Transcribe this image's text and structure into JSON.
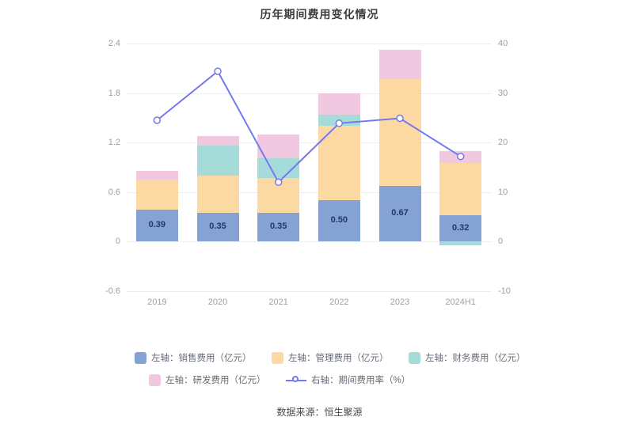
{
  "title": "历年期间费用变化情况",
  "footer": "数据来源：恒生聚源",
  "colors": {
    "sales": "#84a3d4",
    "management": "#fcd9a2",
    "finance": "#a5dbd8",
    "rd": "#f0c8e0",
    "rate_line": "#7478f0",
    "grid": "#ededf2",
    "axis_text": "#9aa0a8",
    "bar_label_text": "#1f3864"
  },
  "chart_data": {
    "type": "bar",
    "title": "历年期间费用变化情况",
    "categories": [
      "2019",
      "2020",
      "2021",
      "2022",
      "2023",
      "2024H1"
    ],
    "series": [
      {
        "name": "左轴：销售费用（亿元）",
        "axis": "left",
        "color": "#84a3d4",
        "values": [
          0.39,
          0.35,
          0.35,
          0.5,
          0.67,
          0.32
        ]
      },
      {
        "name": "左轴：管理费用（亿元）",
        "axis": "left",
        "color": "#fcd9a2",
        "values": [
          0.36,
          0.45,
          0.42,
          0.9,
          1.3,
          0.63
        ]
      },
      {
        "name": "左轴：财务费用（亿元）",
        "axis": "left",
        "color": "#a5dbd8",
        "values": [
          0.0,
          0.36,
          0.24,
          0.14,
          0.0,
          -0.04
        ]
      },
      {
        "name": "左轴：研发费用（亿元）",
        "axis": "left",
        "color": "#f0c8e0",
        "values": [
          0.11,
          0.12,
          0.29,
          0.26,
          0.35,
          0.15
        ]
      }
    ],
    "line_series": {
      "name": "右轴：期间费用率（%）",
      "axis": "right",
      "color": "#7478f0",
      "values": [
        24.5,
        34.4,
        12.0,
        23.9,
        24.9,
        17.2
      ]
    },
    "bar_labels": [
      "0.39",
      "0.35",
      "0.35",
      "0.50",
      "0.67",
      "0.32"
    ],
    "left_axis": {
      "min": -0.6,
      "max": 2.4,
      "ticks": [
        "2.4",
        "1.8",
        "1.2",
        "0.6",
        "0",
        "-0.6"
      ],
      "tick_values": [
        2.4,
        1.8,
        1.2,
        0.6,
        0,
        -0.6
      ]
    },
    "right_axis": {
      "min": -10,
      "max": 40,
      "ticks": [
        "40",
        "30",
        "20",
        "10",
        "0",
        "-10"
      ],
      "tick_values": [
        40,
        30,
        20,
        10,
        0,
        -10
      ]
    },
    "grid": true,
    "legend_position": "bottom"
  },
  "legend": {
    "items": [
      {
        "label": "左轴：销售费用（亿元）",
        "color": "#84a3d4",
        "type": "box"
      },
      {
        "label": "左轴：管理费用（亿元）",
        "color": "#fcd9a2",
        "type": "box"
      },
      {
        "label": "左轴：财务费用（亿元）",
        "color": "#a5dbd8",
        "type": "box"
      },
      {
        "label": "左轴：研发费用（亿元）",
        "color": "#f0c8e0",
        "type": "box"
      },
      {
        "label": "右轴：期间费用率（%）",
        "color": "#7478f0",
        "type": "line"
      }
    ]
  }
}
